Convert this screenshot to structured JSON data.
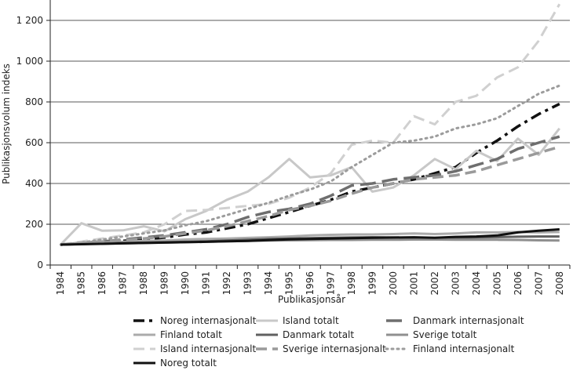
{
  "chart_data": {
    "type": "line",
    "title": "",
    "xlabel": "Publikasjonsår",
    "ylabel": "Publikasjonsvolum indeks",
    "ylim": [
      0,
      1300
    ],
    "yticks": [
      0,
      200,
      400,
      600,
      800,
      1000,
      1200
    ],
    "ytick_labels": [
      "0",
      "200",
      "400",
      "600",
      "800",
      "1 000",
      "1 200"
    ],
    "grid": "horizontal",
    "legend_position": "bottom",
    "x": [
      "1984",
      "1985",
      "1986",
      "1987",
      "1988",
      "1989",
      "1990",
      "1991",
      "1992",
      "1993",
      "1994",
      "1995",
      "1996",
      "1997",
      "1998",
      "1999",
      "2000",
      "2001",
      "2002",
      "2003",
      "2004",
      "2005",
      "2006",
      "2007",
      "2008"
    ],
    "series": [
      {
        "name": "Noreg internasjonalt",
        "color": "#111111",
        "dash": "dashdot",
        "width": 3.5,
        "values": [
          100,
          108,
          112,
          118,
          125,
          135,
          150,
          160,
          180,
          200,
          230,
          260,
          290,
          320,
          360,
          380,
          400,
          420,
          450,
          480,
          550,
          610,
          680,
          740,
          790
        ]
      },
      {
        "name": "Island totalt",
        "color": "#c8c8c8",
        "dash": "solid",
        "width": 3,
        "values": [
          100,
          205,
          168,
          170,
          190,
          165,
          225,
          265,
          320,
          360,
          430,
          520,
          430,
          440,
          480,
          360,
          380,
          440,
          520,
          470,
          560,
          510,
          620,
          540,
          670
        ]
      },
      {
        "name": "Danmark internasjonalt",
        "color": "#6e6e6e",
        "dash": "longdash",
        "width": 3.5,
        "values": [
          100,
          108,
          115,
          125,
          135,
          145,
          160,
          175,
          200,
          235,
          260,
          275,
          300,
          340,
          390,
          400,
          420,
          430,
          440,
          460,
          490,
          520,
          570,
          600,
          630
        ]
      },
      {
        "name": "Finland totalt",
        "color": "#ababab",
        "dash": "solid",
        "width": 3,
        "values": [
          100,
          108,
          110,
          114,
          118,
          120,
          125,
          128,
          130,
          133,
          136,
          140,
          145,
          148,
          150,
          150,
          152,
          155,
          152,
          155,
          160,
          160,
          162,
          160,
          162
        ]
      },
      {
        "name": "Danmark totalt",
        "color": "#606060",
        "dash": "solid",
        "width": 3,
        "values": [
          100,
          103,
          106,
          108,
          110,
          112,
          114,
          116,
          120,
          124,
          128,
          130,
          132,
          134,
          135,
          136,
          135,
          134,
          133,
          134,
          135,
          137,
          139,
          140,
          140
        ]
      },
      {
        "name": "Sverige totalt",
        "color": "#8f8f8f",
        "dash": "solid",
        "width": 3,
        "values": [
          100,
          103,
          105,
          106,
          108,
          110,
          112,
          114,
          116,
          118,
          120,
          121,
          122,
          123,
          123,
          124,
          124,
          125,
          125,
          124,
          124,
          124,
          123,
          121,
          120
        ]
      },
      {
        "name": "Island internasjonalt",
        "color": "#d0d0d0",
        "dash": "dash",
        "width": 3,
        "values": [
          100,
          115,
          130,
          145,
          160,
          200,
          265,
          270,
          280,
          290,
          300,
          330,
          380,
          450,
          590,
          610,
          600,
          730,
          690,
          800,
          830,
          920,
          970,
          1100,
          1280
        ]
      },
      {
        "name": "Sverige internasjonalt",
        "color": "#9a9a9a",
        "dash": "dash",
        "width": 3.5,
        "values": [
          100,
          108,
          115,
          122,
          130,
          140,
          155,
          170,
          190,
          215,
          240,
          270,
          290,
          315,
          350,
          380,
          400,
          420,
          430,
          440,
          460,
          490,
          520,
          550,
          580
        ]
      },
      {
        "name": "Finland internasjonalt",
        "color": "#9c9c9c",
        "dash": "dot",
        "width": 3,
        "values": [
          100,
          110,
          125,
          140,
          155,
          170,
          195,
          215,
          245,
          275,
          305,
          340,
          370,
          410,
          480,
          540,
          600,
          610,
          630,
          670,
          690,
          720,
          780,
          840,
          880
        ]
      },
      {
        "name": "Noreg totalt",
        "color": "#111111",
        "dash": "solid",
        "width": 3,
        "values": [
          100,
          102,
          104,
          106,
          108,
          110,
          112,
          114,
          116,
          118,
          122,
          126,
          128,
          130,
          132,
          134,
          135,
          136,
          134,
          138,
          140,
          145,
          160,
          168,
          175
        ]
      }
    ]
  }
}
